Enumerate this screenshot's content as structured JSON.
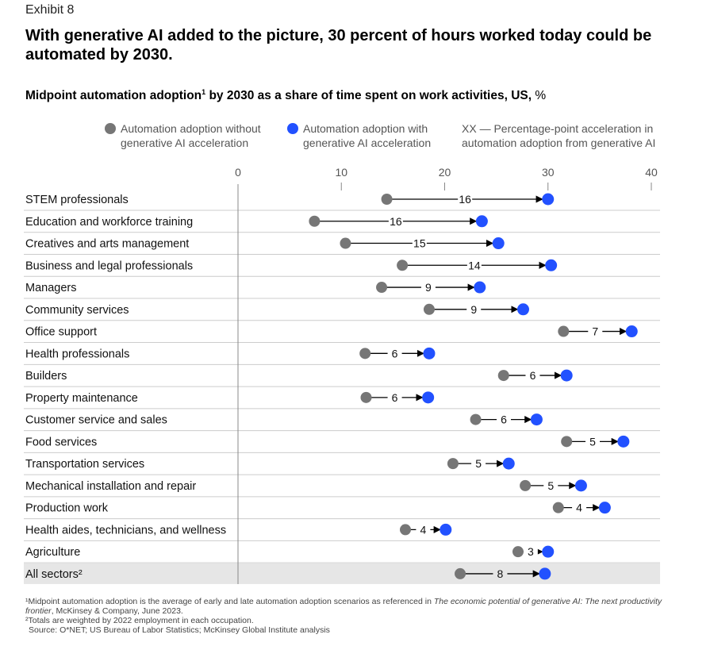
{
  "exhibit": "Exhibit 8",
  "title": "With generative AI added to the picture, 30 percent of hours worked today could be automated by 2030.",
  "subtitle": {
    "main": "Midpoint automation adoption",
    "sup": "1",
    "rest": " by 2030 as a share of time spent on work activities, US,",
    "unit": " %"
  },
  "legend": {
    "without": "Automation adoption without generative AI acceleration",
    "with": "Automation adoption with generative AI acceleration",
    "xx": "XX — Percentage-point acceleration in automation adoption from generative AI"
  },
  "colors": {
    "without": "#767676",
    "with": "#2251ff",
    "highlight": "#e6e6e6"
  },
  "chart_data": {
    "type": "dumbbell",
    "xlim": [
      0,
      40
    ],
    "ticks": [
      "0",
      "10",
      "20",
      "30",
      "40"
    ],
    "series": [
      {
        "name": "Automation adoption without generative AI acceleration"
      },
      {
        "name": "Automation adoption with generative AI acceleration"
      }
    ],
    "rows": [
      {
        "label": "STEM professionals",
        "without": 14.4,
        "with": 30.0,
        "delta": "16"
      },
      {
        "label": "Education and workforce training",
        "without": 7.4,
        "with": 23.6,
        "delta": "16"
      },
      {
        "label": "Creatives and arts management",
        "without": 10.4,
        "with": 25.2,
        "delta": "15"
      },
      {
        "label": "Business and legal professionals",
        "without": 15.9,
        "with": 30.3,
        "delta": "14"
      },
      {
        "label": "Managers",
        "without": 13.9,
        "with": 23.4,
        "delta": "9"
      },
      {
        "label": "Community services",
        "without": 18.5,
        "with": 27.6,
        "delta": "9"
      },
      {
        "label": "Office support",
        "without": 31.5,
        "with": 38.1,
        "delta": "7"
      },
      {
        "label": "Health professionals",
        "without": 12.3,
        "with": 18.5,
        "delta": "6"
      },
      {
        "label": "Builders",
        "without": 25.7,
        "with": 31.8,
        "delta": "6"
      },
      {
        "label": "Property maintenance",
        "without": 12.4,
        "with": 18.4,
        "delta": "6"
      },
      {
        "label": "Customer service and sales",
        "without": 23.0,
        "with": 28.9,
        "delta": "6"
      },
      {
        "label": "Food services",
        "without": 31.8,
        "with": 37.3,
        "delta": "5"
      },
      {
        "label": "Transportation services",
        "without": 20.8,
        "with": 26.2,
        "delta": "5"
      },
      {
        "label": "Mechanical installation and repair",
        "without": 27.8,
        "with": 33.2,
        "delta": "5"
      },
      {
        "label": "Production work",
        "without": 31.0,
        "with": 35.5,
        "delta": "4"
      },
      {
        "label": "Health aides, technicians, and wellness",
        "without": 16.2,
        "with": 20.1,
        "delta": "4"
      },
      {
        "label": "Agriculture",
        "without": 27.1,
        "with": 30.0,
        "delta": "3"
      },
      {
        "label": "All sectors²",
        "without": 21.5,
        "with": 29.7,
        "delta": "8",
        "highlight": true
      }
    ]
  },
  "footnotes": {
    "f1_pre": "¹Midpoint automation adoption is the average of early and late automation adoption scenarios as referenced in ",
    "f1_italic": "The economic potential of generative AI: The next productivity frontier",
    "f1_post": ", McKinsey & Company, June 2023.",
    "f2": "²Totals are weighted by 2022 employment in each occupation.",
    "source": "Source: O*NET; US Bureau of Labor Statistics; McKinsey Global Institute analysis"
  }
}
